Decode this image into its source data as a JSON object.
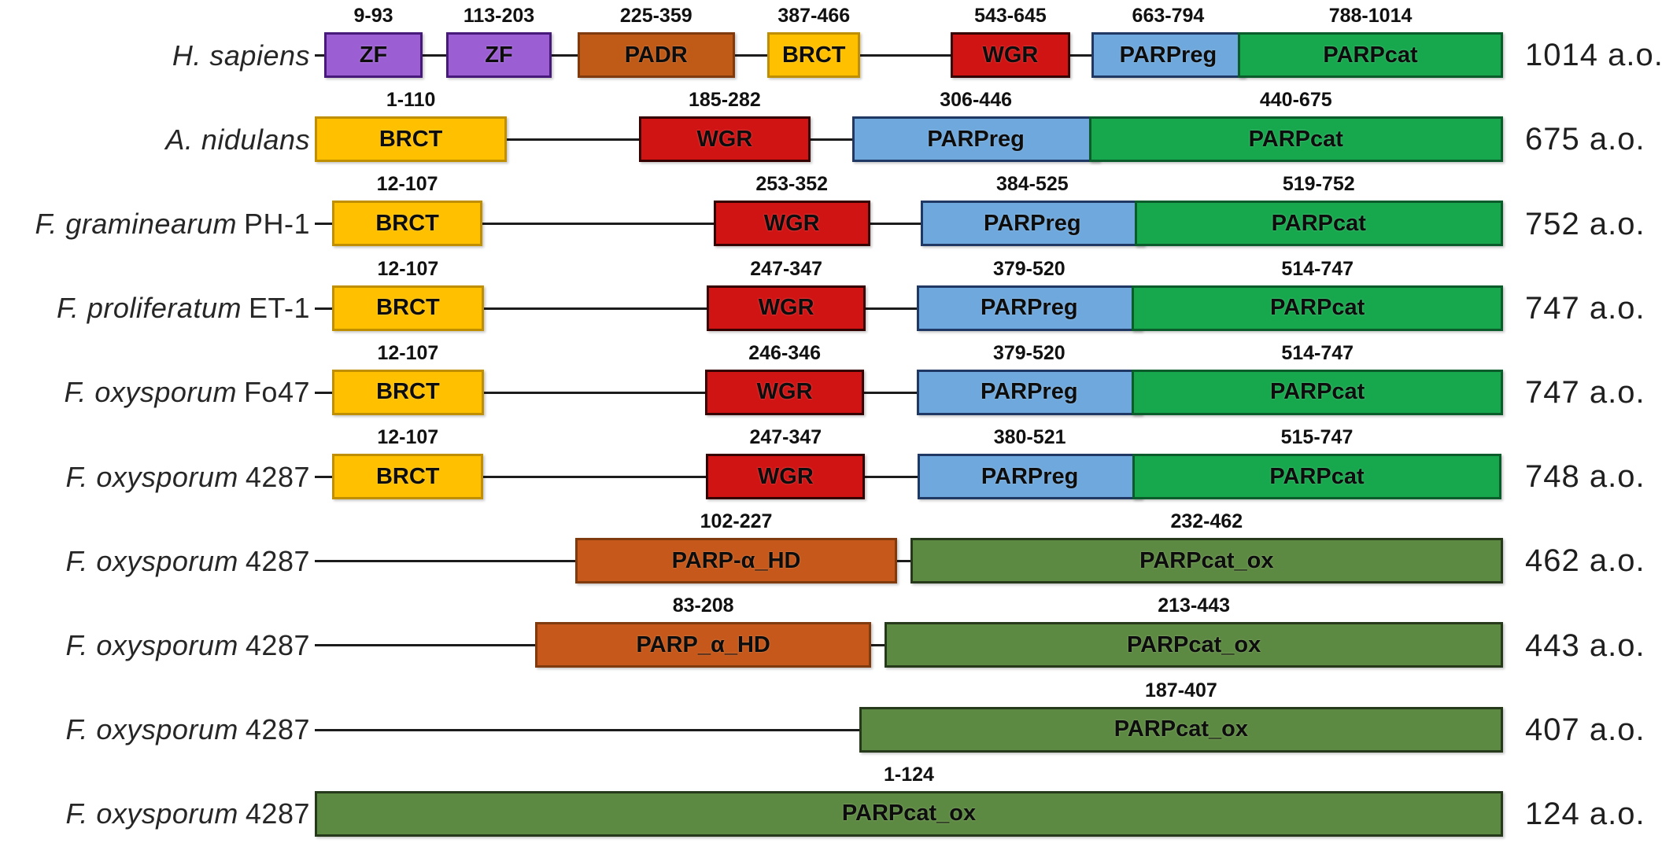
{
  "figure": {
    "unit": "a.o.",
    "domain_colors": {
      "ZF": {
        "fill": "#9B5FD3",
        "border": "#46197B"
      },
      "PADR": {
        "fill": "#C05A17",
        "border": "#7F3B0E"
      },
      "BRCT": {
        "fill": "#FFC000",
        "border": "#BF8F00"
      },
      "WGR": {
        "fill": "#D01414",
        "border": "#350000"
      },
      "PARPreg": {
        "fill": "#6FA8DC",
        "border": "#1F3864"
      },
      "PARPcat": {
        "fill": "#17A84E",
        "border": "#0B5C2B"
      },
      "PARP_a_HD": {
        "fill": "#C5581A",
        "border": "#7F3B0E"
      },
      "PARPcat_ox": {
        "fill": "#5D8A42",
        "border": "#26391B"
      }
    },
    "rows": [
      {
        "organism": "H. sapiens",
        "strain": "",
        "length_aa": 1014,
        "total_label": "1014 a.o.",
        "domains": [
          {
            "label": "ZF",
            "type": "ZF",
            "range": "9-93",
            "start": 9,
            "end": 93
          },
          {
            "label": "ZF",
            "type": "ZF",
            "range": "113-203",
            "start": 113,
            "end": 203
          },
          {
            "label": "PADR",
            "type": "PADR",
            "range": "225-359",
            "start": 225,
            "end": 359
          },
          {
            "label": "BRCT",
            "type": "BRCT",
            "range": "387-466",
            "start": 387,
            "end": 466
          },
          {
            "label": "WGR",
            "type": "WGR",
            "range": "543-645",
            "start": 543,
            "end": 645
          },
          {
            "label": "PARPreg",
            "type": "PARPreg",
            "range": "663-794",
            "start": 663,
            "end": 794
          },
          {
            "label": "PARPcat",
            "type": "PARPcat",
            "range": "788-1014",
            "start": 788,
            "end": 1014
          }
        ]
      },
      {
        "organism": "A. nidulans",
        "strain": "",
        "length_aa": 675,
        "total_label": "675 a.o.",
        "domains": [
          {
            "label": "BRCT",
            "type": "BRCT",
            "range": "1-110",
            "start": 1,
            "end": 110
          },
          {
            "label": "WGR",
            "type": "WGR",
            "range": "185-282",
            "start": 185,
            "end": 282
          },
          {
            "label": "PARPreg",
            "type": "PARPreg",
            "range": "306-446",
            "start": 306,
            "end": 446
          },
          {
            "label": "PARPcat",
            "type": "PARPcat",
            "range": "440-675",
            "start": 440,
            "end": 675
          }
        ]
      },
      {
        "organism": "F. graminearum",
        "strain": "PH-1",
        "length_aa": 752,
        "total_label": "752 a.o.",
        "domains": [
          {
            "label": "BRCT",
            "type": "BRCT",
            "range": "12-107",
            "start": 12,
            "end": 107
          },
          {
            "label": "WGR",
            "type": "WGR",
            "range": "253-352",
            "start": 253,
            "end": 352
          },
          {
            "label": "PARPreg",
            "type": "PARPreg",
            "range": "384-525",
            "start": 384,
            "end": 525
          },
          {
            "label": "PARPcat",
            "type": "PARPcat",
            "range": "519-752",
            "start": 519,
            "end": 752
          }
        ]
      },
      {
        "organism": "F. proliferatum",
        "strain": "ET-1",
        "length_aa": 747,
        "total_label": "747 a.o.",
        "domains": [
          {
            "label": "BRCT",
            "type": "BRCT",
            "range": "12-107",
            "start": 12,
            "end": 107
          },
          {
            "label": "WGR",
            "type": "WGR",
            "range": "247-347",
            "start": 247,
            "end": 347
          },
          {
            "label": "PARPreg",
            "type": "PARPreg",
            "range": "379-520",
            "start": 379,
            "end": 520
          },
          {
            "label": "PARPcat",
            "type": "PARPcat",
            "range": "514-747",
            "start": 514,
            "end": 747
          }
        ]
      },
      {
        "organism": "F. oxysporum",
        "strain": "Fo47",
        "length_aa": 747,
        "total_label": "747 a.o.",
        "domains": [
          {
            "label": "BRCT",
            "type": "BRCT",
            "range": "12-107",
            "start": 12,
            "end": 107
          },
          {
            "label": "WGR",
            "type": "WGR",
            "range": "246-346",
            "start": 246,
            "end": 346
          },
          {
            "label": "PARPreg",
            "type": "PARPreg",
            "range": "379-520",
            "start": 379,
            "end": 520
          },
          {
            "label": "PARPcat",
            "type": "PARPcat",
            "range": "514-747",
            "start": 514,
            "end": 747
          }
        ]
      },
      {
        "organism": "F. oxysporum",
        "strain": "4287",
        "length_aa": 748,
        "total_label": "748 a.o.",
        "domains": [
          {
            "label": "BRCT",
            "type": "BRCT",
            "range": "12-107",
            "start": 12,
            "end": 107
          },
          {
            "label": "WGR",
            "type": "WGR",
            "range": "247-347",
            "start": 247,
            "end": 347
          },
          {
            "label": "PARPreg",
            "type": "PARPreg",
            "range": "380-521",
            "start": 380,
            "end": 521
          },
          {
            "label": "PARPcat",
            "type": "PARPcat",
            "range": "515-747",
            "start": 515,
            "end": 747
          }
        ]
      },
      {
        "organism": "F. oxysporum",
        "strain": "4287",
        "length_aa": 462,
        "total_label": "462 a.o.",
        "domains": [
          {
            "label": "PARP-α_HD",
            "type": "PARP_a_HD",
            "range": "102-227",
            "start": 102,
            "end": 227
          },
          {
            "label": "PARPcat_ox",
            "type": "PARPcat_ox",
            "range": "232-462",
            "start": 232,
            "end": 462
          }
        ]
      },
      {
        "organism": "F. oxysporum",
        "strain": "4287",
        "length_aa": 443,
        "total_label": "443 a.o.",
        "domains": [
          {
            "label": "PARP_α_HD",
            "type": "PARP_a_HD",
            "range": "83-208",
            "start": 83,
            "end": 208
          },
          {
            "label": "PARPcat_ox",
            "type": "PARPcat_ox",
            "range": "213-443",
            "start": 213,
            "end": 443
          }
        ]
      },
      {
        "organism": "F. oxysporum",
        "strain": "4287",
        "length_aa": 407,
        "total_label": "407 a.o.",
        "domains": [
          {
            "label": "PARPcat_ox",
            "type": "PARPcat_ox",
            "range": "187-407",
            "start": 187,
            "end": 407
          }
        ]
      },
      {
        "organism": "F. oxysporum",
        "strain": "4287",
        "length_aa": 124,
        "total_label": "124 a.o.",
        "domains": [
          {
            "label": "PARPcat_ox",
            "type": "PARPcat_ox",
            "range": "1-124",
            "start": 1,
            "end": 124
          }
        ]
      }
    ]
  }
}
